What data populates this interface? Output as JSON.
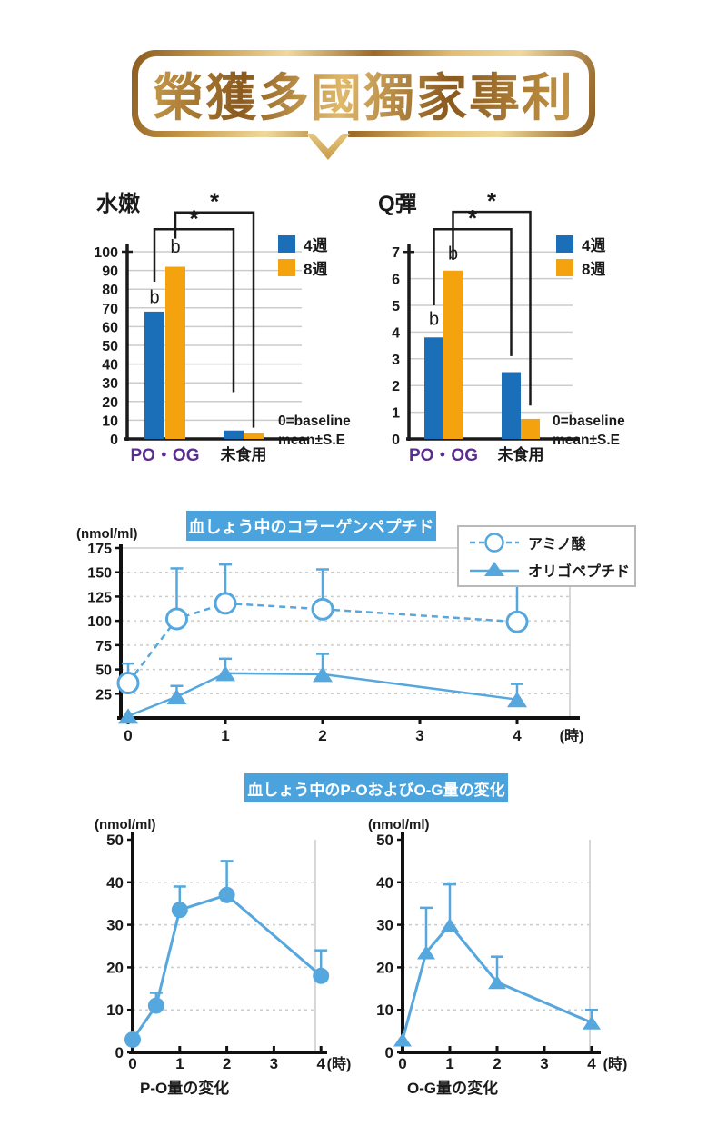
{
  "banner": {
    "text": "榮獲多國獨家專利"
  },
  "section_badges": {
    "collagen": "血しょう中のコラーゲンペプチド",
    "po_og": "血しょう中のP-OおよびO-G量の変化"
  },
  "colors": {
    "bar_blue": "#1b6fb8",
    "bar_orange": "#f4a30e",
    "line_blue": "#55a7dd",
    "badge_bg": "#4aa3dc",
    "purple": "#5c2d91",
    "ink": "#1a1a1a",
    "grid": "#cccccc",
    "gold_dark": "#8a5a1e",
    "gold_mid": "#c79a4a",
    "gold_light": "#f0d99c"
  },
  "chart_data": [
    {
      "id": "suinen",
      "type": "bar",
      "title": "水嫩",
      "categories": [
        "PO・OG",
        "未食用"
      ],
      "category_colors": [
        "#5c2d91",
        "#1a1a1a"
      ],
      "series": [
        {
          "name": "4週",
          "color": "#1b6fb8",
          "values": [
            68,
            4.5
          ]
        },
        {
          "name": "8週",
          "color": "#f4a30e",
          "values": [
            92,
            3
          ]
        }
      ],
      "ylim": [
        0,
        100
      ],
      "ytick_step": 10,
      "grid": true,
      "legend_position": "top-right",
      "note": [
        "0=baseline",
        "mean±S.E"
      ],
      "annotations": {
        "b_labels": [
          {
            "slot": 0,
            "y": 76,
            "text": "b"
          },
          {
            "slot": 1,
            "y": 103,
            "text": "b"
          }
        ],
        "brackets": [
          {
            "left_slot": 0,
            "left_y": 84,
            "top_y": 112,
            "right_slot": 2,
            "right_y": 25,
            "label": "*"
          },
          {
            "left_slot": 1,
            "left_y": 107,
            "top_y": 121,
            "right_slot": 3,
            "right_y": 6,
            "label": "*"
          }
        ]
      }
    },
    {
      "id": "qdan",
      "type": "bar",
      "title": "Q彈",
      "categories": [
        "PO・OG",
        "未食用"
      ],
      "category_colors": [
        "#5c2d91",
        "#1a1a1a"
      ],
      "series": [
        {
          "name": "4週",
          "color": "#1b6fb8",
          "values": [
            3.8,
            2.5
          ]
        },
        {
          "name": "8週",
          "color": "#f4a30e",
          "values": [
            6.3,
            0.75
          ]
        }
      ],
      "ylim": [
        0,
        7
      ],
      "ytick_step": 1,
      "grid": true,
      "legend_position": "top-right",
      "note": [
        "0=baseline",
        "mean±S.E"
      ],
      "annotations": {
        "b_labels": [
          {
            "slot": 0,
            "y": 4.5,
            "text": "b"
          },
          {
            "slot": 1,
            "y": 6.95,
            "text": "b"
          }
        ],
        "brackets": [
          {
            "left_slot": 0,
            "left_y": 5.0,
            "top_y": 7.85,
            "right_slot": 2,
            "right_y": 3.1,
            "label": "*"
          },
          {
            "left_slot": 1,
            "left_y": 6.7,
            "top_y": 8.5,
            "right_slot": 3,
            "right_y": 1.25,
            "label": "*"
          }
        ]
      }
    },
    {
      "id": "plasma_collagen",
      "type": "line",
      "title": "血しょう中のコラーゲンペプチド",
      "ylabel": "(nmol/ml)",
      "xlabel": "(時)",
      "ylim": [
        0,
        175
      ],
      "yticks": [
        25,
        50,
        75,
        100,
        125,
        150,
        175
      ],
      "xticks": [
        0,
        1,
        2,
        3,
        4
      ],
      "grid": true,
      "legend_position": "top-right",
      "series": [
        {
          "name": "アミノ酸",
          "marker": "circle-open",
          "line": "dashed",
          "color": "#55a7dd",
          "points": [
            {
              "x": 0,
              "y": 36,
              "err": 56
            },
            {
              "x": 0.5,
              "y": 102,
              "err": 154
            },
            {
              "x": 1,
              "y": 118,
              "err": 158
            },
            {
              "x": 2,
              "y": 112,
              "err": 153
            },
            {
              "x": 4,
              "y": 99,
              "err": 136
            }
          ]
        },
        {
          "name": "オリゴペプチド",
          "marker": "triangle",
          "line": "solid",
          "color": "#55a7dd",
          "points": [
            {
              "x": 0,
              "y": 2
            },
            {
              "x": 0.5,
              "y": 22,
              "err": 33
            },
            {
              "x": 1,
              "y": 46,
              "err": 61
            },
            {
              "x": 2,
              "y": 45,
              "err": 66
            },
            {
              "x": 4,
              "y": 19,
              "err": 35
            }
          ]
        }
      ]
    },
    {
      "id": "po_change",
      "type": "line",
      "caption": "P-O量の変化",
      "ylabel": "(nmol/ml)",
      "xlabel": "(時)",
      "ylim": [
        0,
        50
      ],
      "yticks": [
        0,
        10,
        20,
        30,
        40,
        50
      ],
      "xticks": [
        0,
        1,
        2,
        3,
        4
      ],
      "grid": true,
      "series": [
        {
          "name": "P-O",
          "marker": "circle",
          "line": "solid",
          "color": "#55a7dd",
          "points": [
            {
              "x": 0,
              "y": 3
            },
            {
              "x": 0.5,
              "y": 11,
              "err": 14
            },
            {
              "x": 1,
              "y": 33.5,
              "err": 39
            },
            {
              "x": 2,
              "y": 37,
              "err": 45
            },
            {
              "x": 4,
              "y": 18,
              "err": 24
            }
          ]
        }
      ]
    },
    {
      "id": "og_change",
      "type": "line",
      "caption": "O-G量の変化",
      "ylabel": "(nmol/ml)",
      "xlabel": "(時)",
      "ylim": [
        0,
        50
      ],
      "yticks": [
        0,
        10,
        20,
        30,
        40,
        50
      ],
      "xticks": [
        0,
        1,
        2,
        3,
        4
      ],
      "grid": true,
      "series": [
        {
          "name": "O-G",
          "marker": "triangle",
          "line": "solid",
          "color": "#55a7dd",
          "points": [
            {
              "x": 0,
              "y": 3
            },
            {
              "x": 0.5,
              "y": 23.5,
              "err": 34
            },
            {
              "x": 1,
              "y": 30,
              "err": 39.5
            },
            {
              "x": 2,
              "y": 16.5,
              "err": 22.5
            },
            {
              "x": 4,
              "y": 7,
              "err": 10
            }
          ]
        }
      ]
    }
  ]
}
